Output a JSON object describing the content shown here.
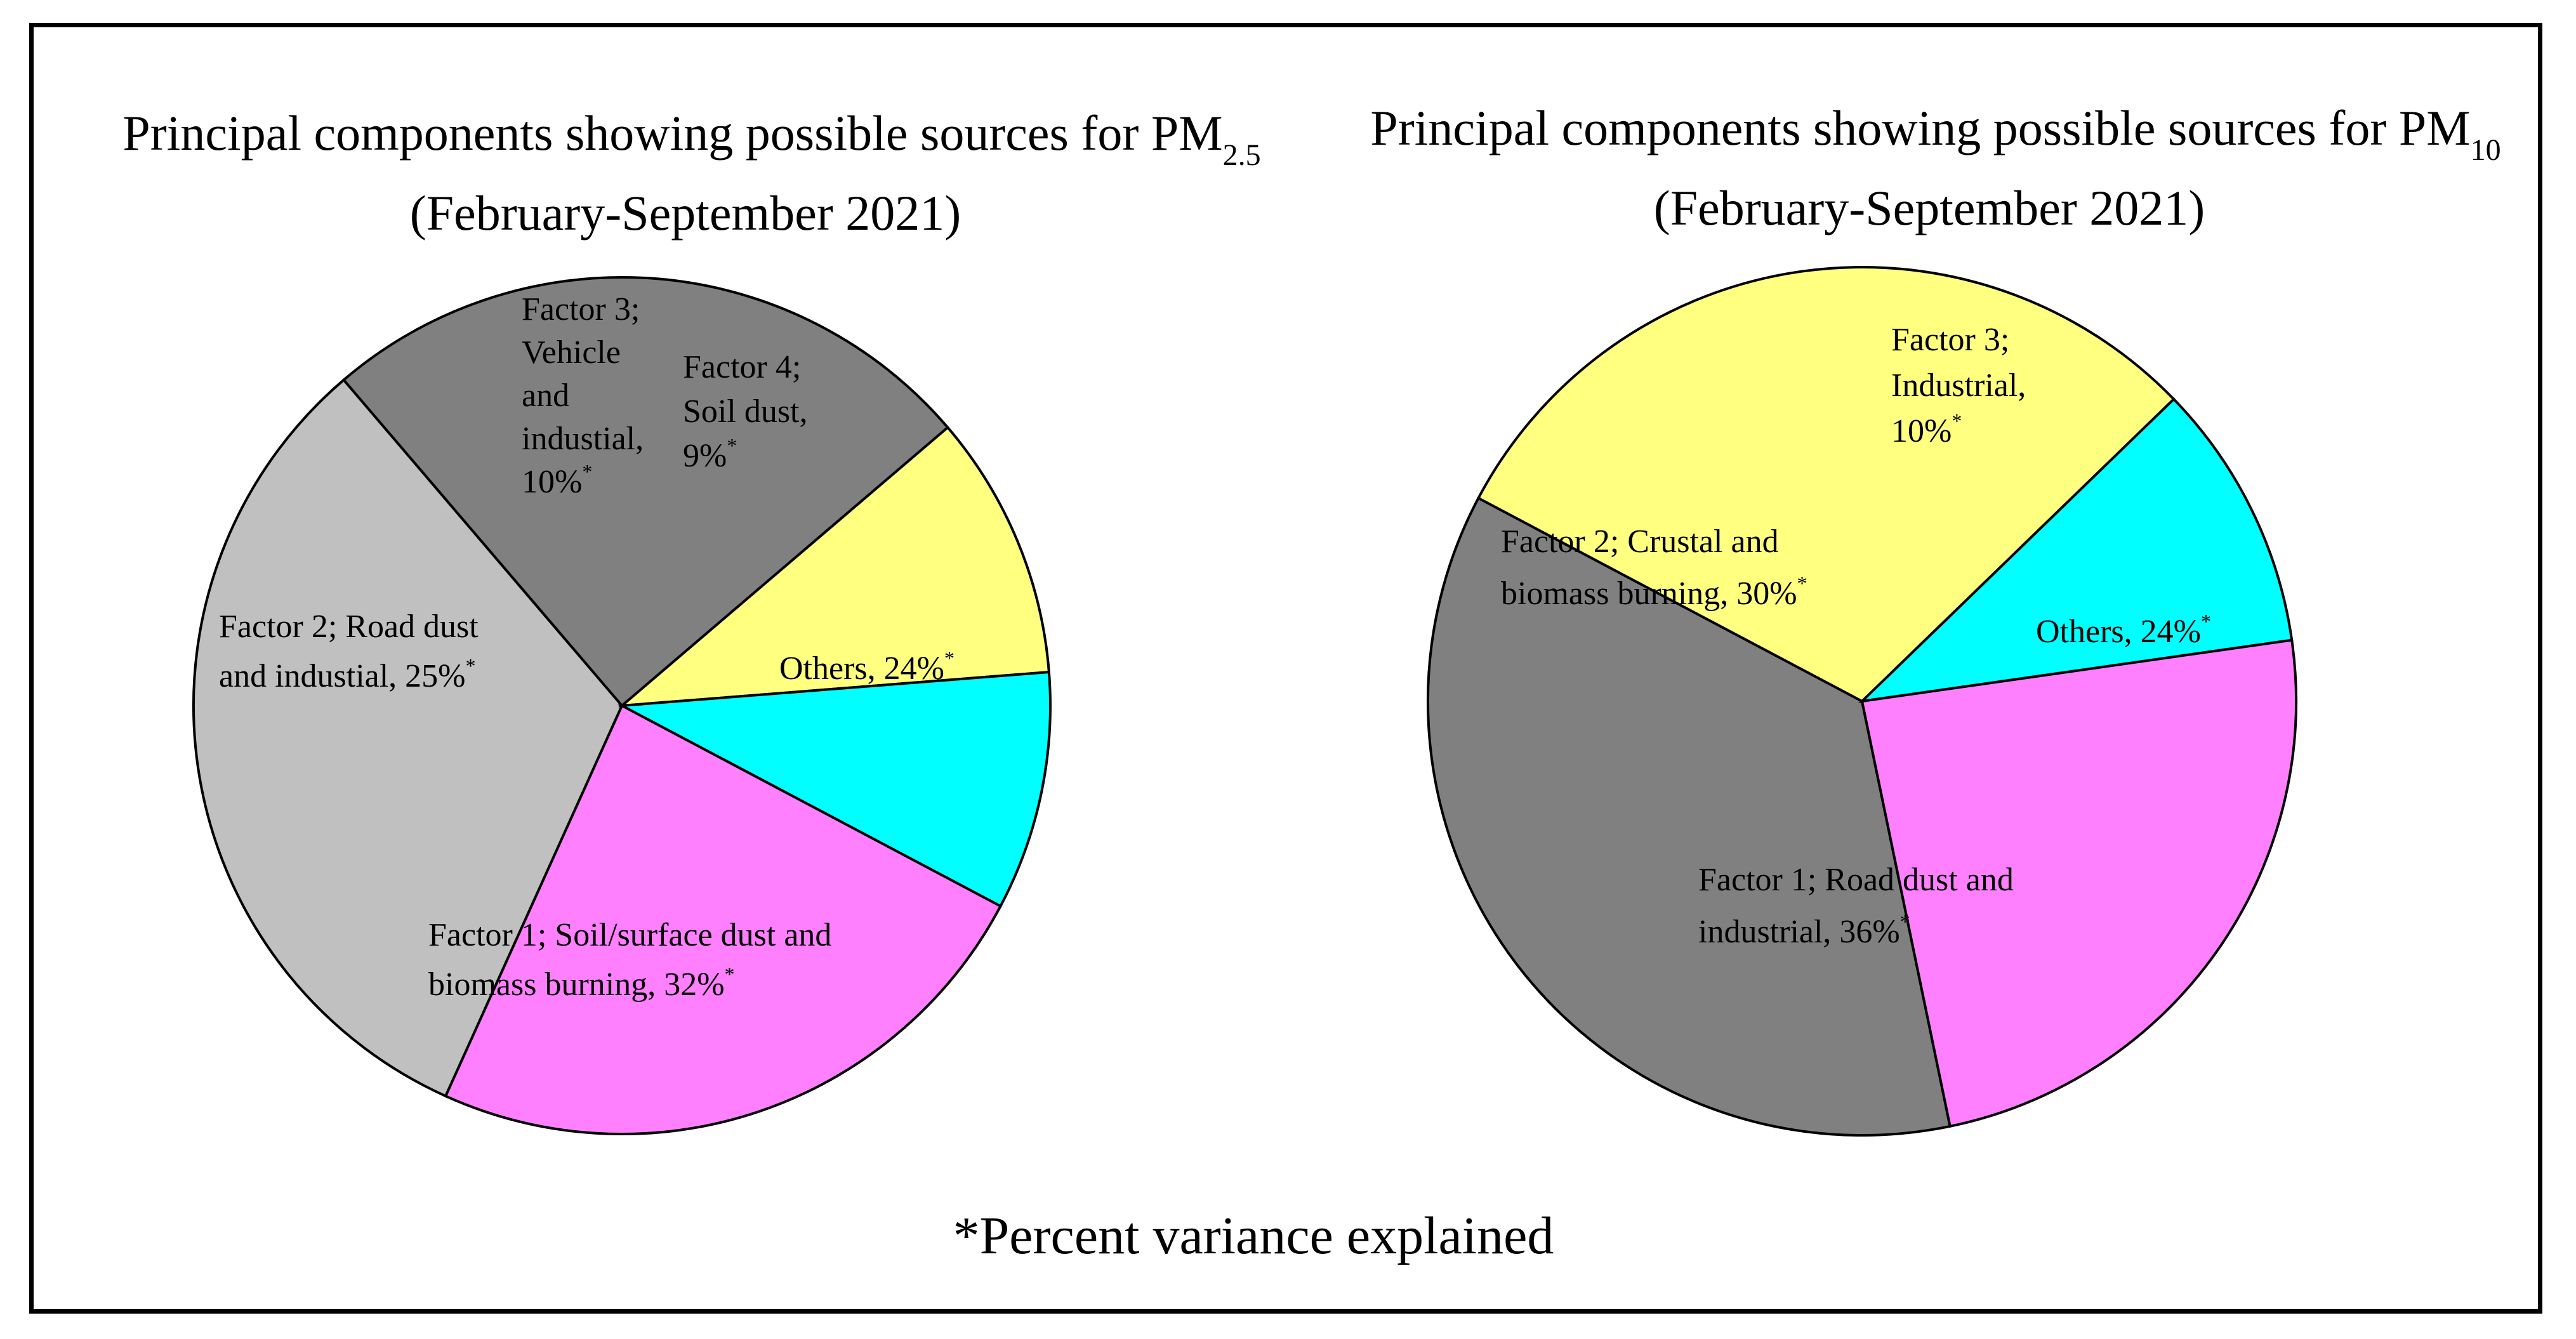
{
  "chart_data": [
    {
      "type": "pie",
      "title_line1": "Principal components showing possible sources for PM",
      "title_sub": "2.5",
      "title_line2": "(February-September 2021)",
      "slices": [
        {
          "name": "Factor 1",
          "label_lines": [
            "Factor 1; Soil/surface dust and",
            "biomass burning, 32%"
          ],
          "value": 32,
          "color": "#c0c0c0"
        },
        {
          "name": "Factor 2",
          "label_lines": [
            "Factor 2; Road dust",
            "and industial, 25%"
          ],
          "value": 25,
          "color": "#808080"
        },
        {
          "name": "Factor 3",
          "label_lines": [
            "Factor 3;",
            "Vehicle",
            "and",
            "industial,",
            "10%"
          ],
          "value": 10,
          "color": "#ffff80"
        },
        {
          "name": "Factor 4",
          "label_lines": [
            "Factor 4;",
            "Soil dust,",
            "9%"
          ],
          "value": 9,
          "color": "#00ffff"
        },
        {
          "name": "Others",
          "label_lines": [
            "Others, 24%"
          ],
          "value": 24,
          "color": "#ff80ff"
        }
      ]
    },
    {
      "type": "pie",
      "title_line1": "Principal components showing possible sources for PM",
      "title_sub": "10",
      "title_line2": "(February-September 2021)",
      "slices": [
        {
          "name": "Factor 1",
          "label_lines": [
            "Factor 1; Road dust and",
            "industrial, 36%"
          ],
          "value": 36,
          "color": "#808080"
        },
        {
          "name": "Factor 2",
          "label_lines": [
            "Factor 2; Crustal and",
            "biomass burning, 30%"
          ],
          "value": 30,
          "color": "#ffff80"
        },
        {
          "name": "Factor 3",
          "label_lines": [
            "Factor 3;",
            "Industrial,",
            "10%"
          ],
          "value": 10,
          "color": "#00ffff"
        },
        {
          "name": "Others",
          "label_lines": [
            "Others, 24%"
          ],
          "value": 24,
          "color": "#ff80ff"
        }
      ]
    }
  ],
  "footnote": "*Percent variance explained",
  "asterisk": "*"
}
